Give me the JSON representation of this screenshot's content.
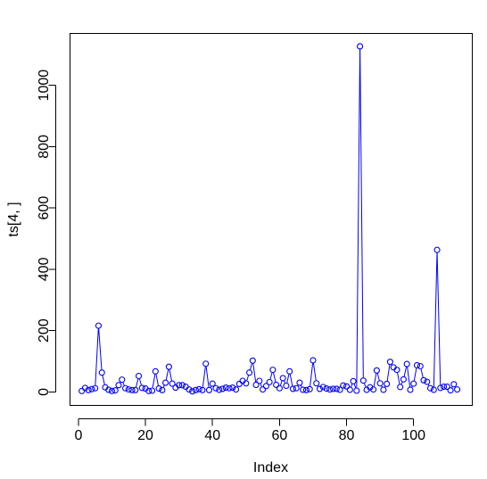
{
  "chart_data": {
    "type": "line",
    "title": "",
    "xlabel": "Index",
    "ylabel": "ts[4, ]",
    "xlim": [
      -2.5,
      117.5
    ],
    "ylim": [
      -44,
      1169
    ],
    "x_ticks": [
      0,
      20,
      40,
      60,
      80,
      100
    ],
    "x_tick_labels": [
      "0",
      "20",
      "40",
      "60",
      "80",
      "100"
    ],
    "y_ticks": [
      0,
      200,
      400,
      600,
      800,
      1000
    ],
    "y_tick_labels": [
      "0",
      "200",
      "400",
      "600",
      "800",
      "1000"
    ],
    "grid": false,
    "legend": "none",
    "plot_style": "both",
    "point_marker": "open-circle",
    "series_color": "#0000ff",
    "x": [
      1,
      2,
      3,
      4,
      5,
      6,
      7,
      8,
      9,
      10,
      11,
      12,
      13,
      14,
      15,
      16,
      17,
      18,
      19,
      20,
      21,
      22,
      23,
      24,
      25,
      26,
      27,
      28,
      29,
      30,
      31,
      32,
      33,
      34,
      35,
      36,
      37,
      38,
      39,
      40,
      41,
      42,
      43,
      44,
      45,
      46,
      47,
      48,
      49,
      50,
      51,
      52,
      53,
      54,
      55,
      56,
      57,
      58,
      59,
      60,
      61,
      62,
      63,
      64,
      65,
      66,
      67,
      68,
      69,
      70,
      71,
      72,
      73,
      74,
      75,
      76,
      77,
      78,
      79,
      80,
      81,
      82,
      83,
      84,
      85,
      86,
      87,
      88,
      89,
      90,
      91,
      92,
      93,
      94,
      95,
      96,
      97,
      98,
      99,
      100,
      101,
      102,
      103,
      104,
      105,
      106,
      107,
      108,
      109,
      110,
      111,
      112,
      113
    ],
    "series": [
      {
        "values": [
          3,
          13,
          6,
          9,
          12,
          216,
          63,
          15,
          7,
          3,
          5,
          22,
          40,
          12,
          8,
          6,
          6,
          52,
          13,
          11,
          3,
          4,
          67,
          11,
          6,
          30,
          82,
          27,
          14,
          22,
          22,
          17,
          8,
          2,
          6,
          9,
          6,
          92,
          6,
          27,
          12,
          7,
          10,
          14,
          12,
          14,
          8,
          26,
          36,
          28,
          63,
          102,
          23,
          36,
          8,
          19,
          32,
          72,
          23,
          12,
          45,
          20,
          67,
          10,
          12,
          30,
          7,
          6,
          9,
          103,
          28,
          10,
          16,
          11,
          8,
          10,
          10,
          7,
          21,
          18,
          7,
          35,
          4,
          1127,
          37,
          7,
          15,
          8,
          70,
          28,
          7,
          26,
          98,
          80,
          72,
          16,
          41,
          91,
          7,
          27,
          87,
          84,
          38,
          33,
          12,
          7,
          463,
          13,
          17,
          17,
          5,
          25,
          8
        ]
      }
    ]
  }
}
